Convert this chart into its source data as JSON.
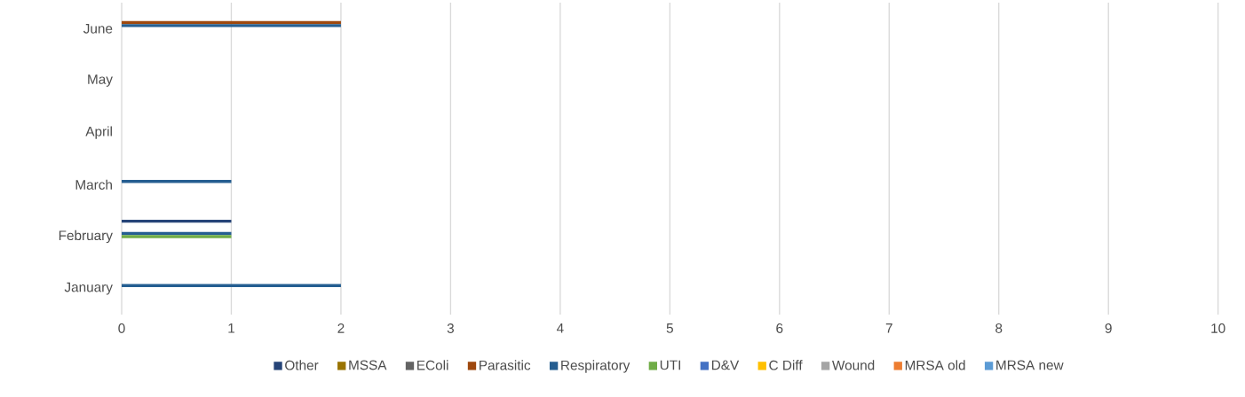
{
  "chart_data": {
    "type": "bar",
    "orientation": "horizontal",
    "categories": [
      "June",
      "May",
      "April",
      "March",
      "February",
      "January"
    ],
    "series": [
      {
        "name": "Other",
        "color": "#264478",
        "values": [
          null,
          null,
          null,
          null,
          1,
          null
        ]
      },
      {
        "name": "MSSA",
        "color": "#997300",
        "values": [
          null,
          null,
          null,
          null,
          null,
          null
        ]
      },
      {
        "name": "EColi",
        "color": "#636363",
        "values": [
          null,
          null,
          null,
          null,
          null,
          null
        ]
      },
      {
        "name": "Parasitic",
        "color": "#9e480e",
        "values": [
          2,
          null,
          null,
          null,
          null,
          null
        ]
      },
      {
        "name": "Respiratory",
        "color": "#255e91",
        "values": [
          2,
          null,
          null,
          1,
          1,
          2
        ]
      },
      {
        "name": "UTI",
        "color": "#70ad47",
        "values": [
          null,
          null,
          null,
          null,
          1,
          null
        ]
      },
      {
        "name": "D&V",
        "color": "#4472c4",
        "values": [
          null,
          null,
          null,
          null,
          null,
          null
        ]
      },
      {
        "name": "C Diff",
        "color": "#ffc000",
        "values": [
          null,
          null,
          null,
          null,
          null,
          null
        ]
      },
      {
        "name": "Wound",
        "color": "#a5a5a5",
        "values": [
          null,
          null,
          null,
          null,
          null,
          null
        ]
      },
      {
        "name": "MRSA old",
        "color": "#ed7d31",
        "values": [
          null,
          null,
          null,
          null,
          null,
          null
        ]
      },
      {
        "name": "MRSA new",
        "color": "#5b9bd5",
        "values": [
          null,
          null,
          null,
          null,
          null,
          null
        ]
      }
    ],
    "xlim": [
      0,
      10
    ],
    "xticks": [
      0,
      1,
      2,
      3,
      4,
      5,
      6,
      7,
      8,
      9,
      10
    ],
    "grid": "x",
    "legend": "bottom"
  }
}
